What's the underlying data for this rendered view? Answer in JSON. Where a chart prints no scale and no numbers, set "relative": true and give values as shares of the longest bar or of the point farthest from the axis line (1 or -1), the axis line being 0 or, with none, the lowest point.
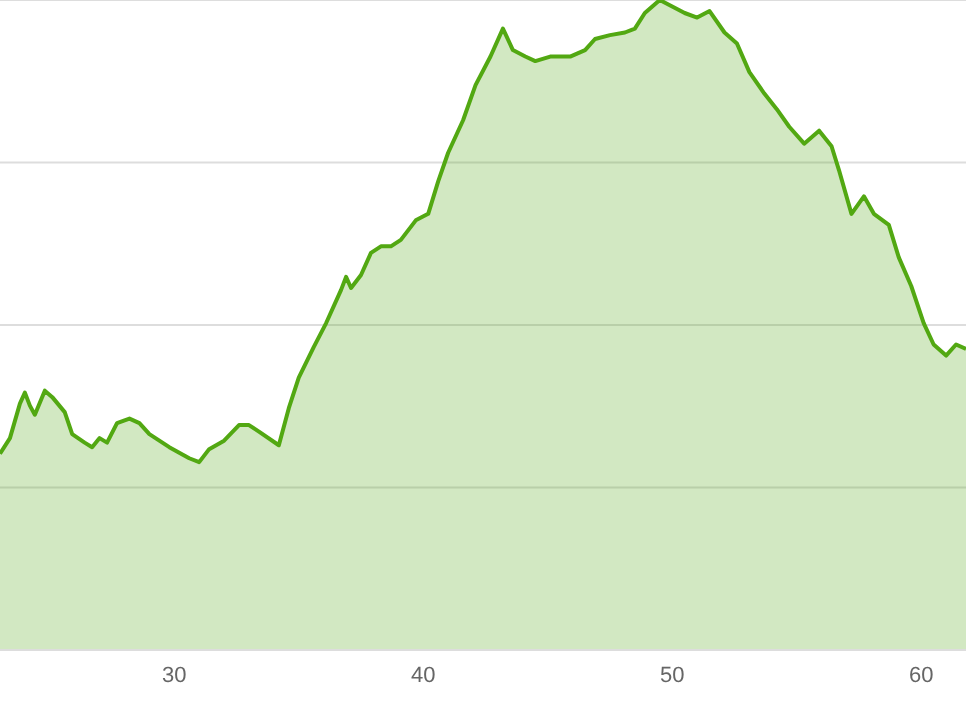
{
  "chart_data": {
    "type": "area",
    "relative": true,
    "grid": "y",
    "xlim": [
      23,
      61.8
    ],
    "xticks": [
      30,
      40,
      50,
      60
    ],
    "series": [
      {
        "color": "#52a812",
        "x": [
          23.0,
          23.4,
          23.8,
          24.0,
          24.2,
          24.4,
          24.8,
          25.1,
          25.6,
          25.9,
          26.4,
          26.7,
          27.0,
          27.3,
          27.7,
          28.2,
          28.6,
          29.0,
          29.8,
          30.6,
          31.0,
          31.4,
          32.0,
          32.6,
          33.0,
          33.4,
          34.2,
          34.6,
          35.0,
          35.6,
          36.1,
          36.7,
          36.9,
          37.1,
          37.5,
          37.9,
          38.3,
          38.7,
          39.1,
          39.7,
          40.2,
          40.6,
          41.0,
          41.6,
          42.1,
          42.7,
          43.2,
          43.6,
          44.1,
          44.5,
          45.1,
          45.9,
          46.5,
          46.9,
          47.5,
          48.1,
          48.5,
          48.9,
          49.5,
          50.0,
          50.5,
          51.0,
          51.5,
          52.1,
          52.6,
          53.1,
          53.7,
          54.2,
          54.7,
          55.3,
          55.9,
          56.4,
          56.7,
          57.2,
          57.7,
          58.1,
          58.7,
          59.1,
          59.6,
          60.1,
          60.5,
          61.0,
          61.4,
          61.8
        ],
        "values": [
          0.302,
          0.326,
          0.379,
          0.396,
          0.376,
          0.362,
          0.399,
          0.389,
          0.366,
          0.332,
          0.319,
          0.312,
          0.326,
          0.319,
          0.349,
          0.356,
          0.349,
          0.332,
          0.312,
          0.295,
          0.289,
          0.309,
          0.322,
          0.346,
          0.346,
          0.336,
          0.315,
          0.372,
          0.419,
          0.466,
          0.503,
          0.554,
          0.574,
          0.557,
          0.577,
          0.611,
          0.621,
          0.621,
          0.631,
          0.661,
          0.671,
          0.721,
          0.765,
          0.815,
          0.869,
          0.913,
          0.956,
          0.923,
          0.913,
          0.906,
          0.913,
          0.913,
          0.923,
          0.94,
          0.946,
          0.95,
          0.956,
          0.98,
          1.0,
          0.99,
          0.98,
          0.973,
          0.983,
          0.95,
          0.933,
          0.889,
          0.856,
          0.832,
          0.805,
          0.779,
          0.799,
          0.775,
          0.738,
          0.671,
          0.698,
          0.671,
          0.654,
          0.604,
          0.56,
          0.503,
          0.47,
          0.453,
          0.47,
          0.463
        ]
      }
    ]
  }
}
